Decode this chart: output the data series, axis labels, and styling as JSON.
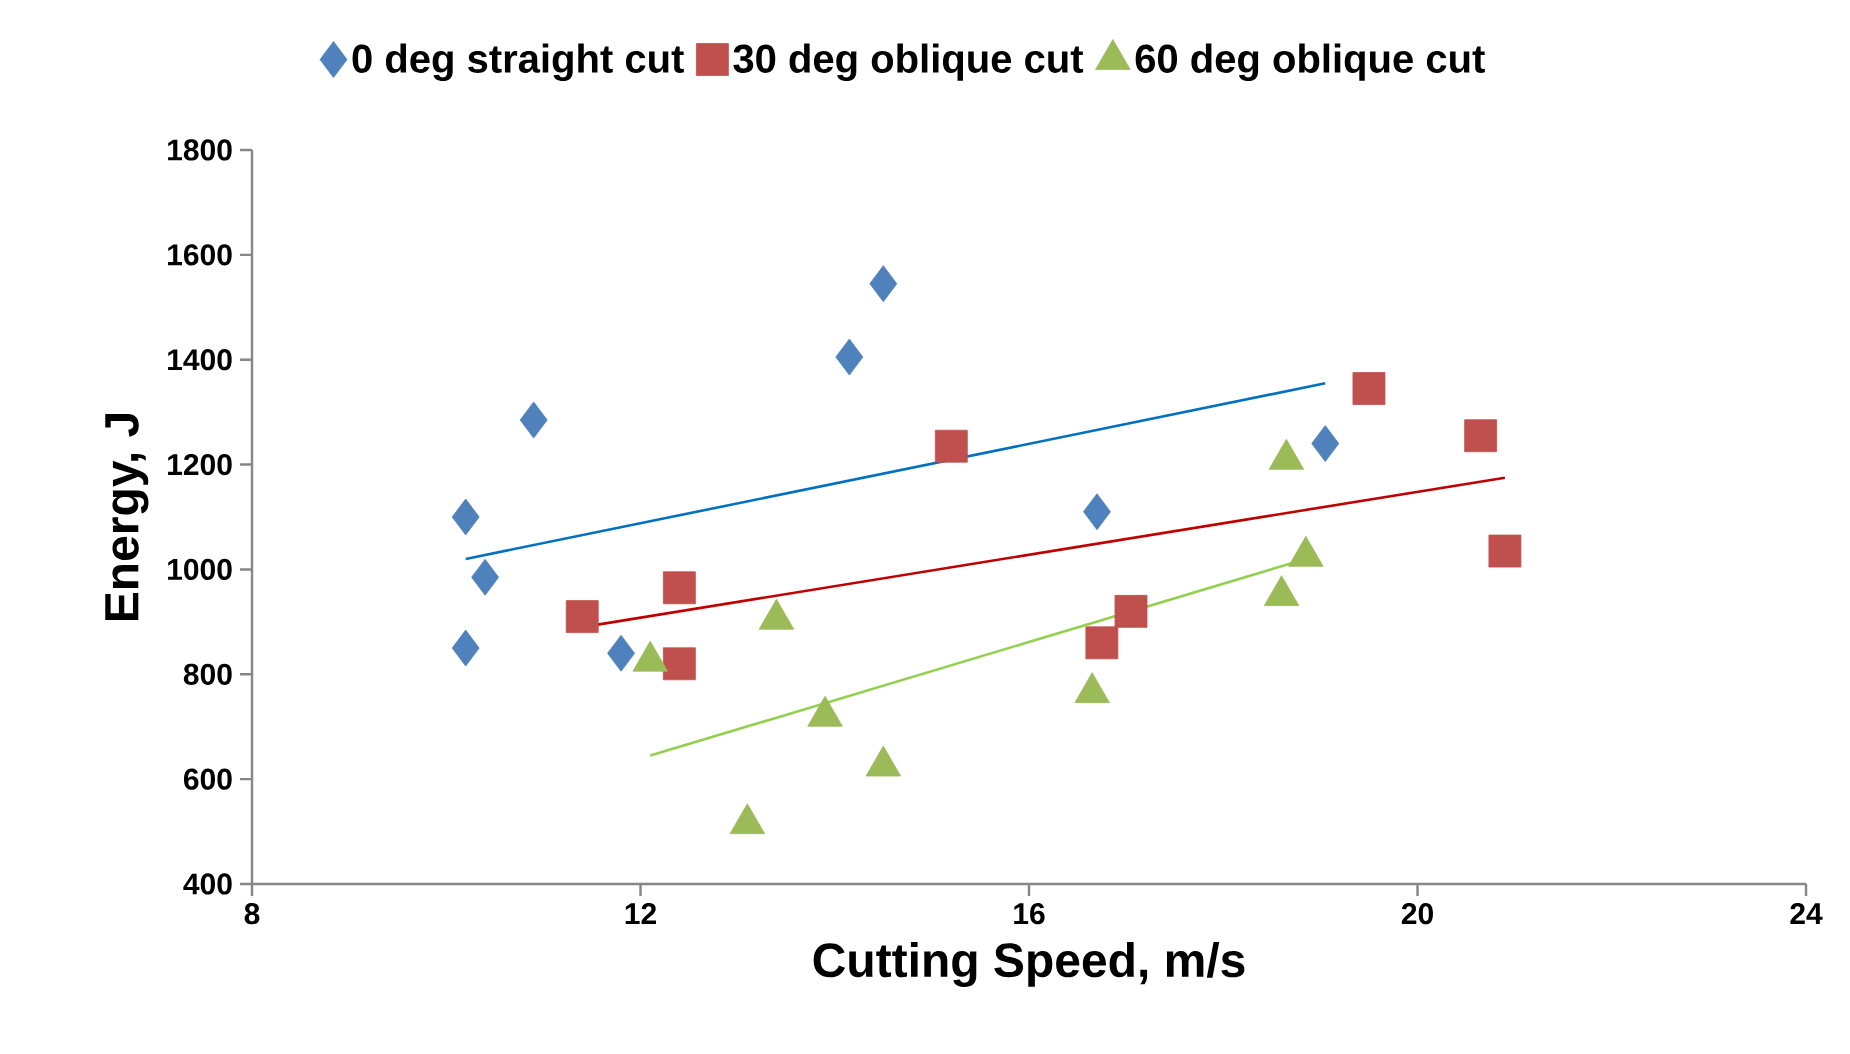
{
  "chart_data": {
    "type": "scatter",
    "xlabel": "Cutting Speed, m/s",
    "ylabel": "Energy, J",
    "xlim": [
      8,
      24
    ],
    "xticks": [
      8,
      12,
      16,
      20,
      24
    ],
    "ylim": [
      400,
      1800
    ],
    "yticks": [
      400,
      600,
      800,
      1000,
      1200,
      1400,
      1600,
      1800
    ],
    "grid": false,
    "legend": "top",
    "series": [
      {
        "name": "0 deg straight cut",
        "color": "#4f81bd",
        "marker": "diamond",
        "x": [
          10.2,
          10.4,
          10.2,
          10.9,
          11.8,
          14.15,
          14.5,
          16.7,
          19.05
        ],
        "values": [
          1100,
          985,
          850,
          1285,
          840,
          1405,
          1545,
          1110,
          1240
        ]
      },
      {
        "name": "30 deg oblique cut",
        "color": "#c0504d",
        "marker": "square",
        "x": [
          11.4,
          12.4,
          12.4,
          15.2,
          16.75,
          17.05,
          19.5,
          20.65,
          20.9
        ],
        "values": [
          910,
          965,
          820,
          1235,
          860,
          920,
          1345,
          1255,
          1035
        ]
      },
      {
        "name": "60 deg oblique cut",
        "color": "#9bbb59",
        "marker": "triangle",
        "x": [
          12.1,
          13.4,
          13.9,
          13.1,
          14.5,
          16.65,
          18.6,
          18.65,
          18.85
        ],
        "values": [
          825,
          905,
          720,
          515,
          625,
          765,
          950,
          1210,
          1025
        ]
      },
      {
        "type": "line",
        "color": "#0070c0",
        "marker": "none",
        "x": [
          10.2,
          19.05
        ],
        "values": [
          1020,
          1355
        ]
      },
      {
        "type": "line",
        "color": "#c00000",
        "marker": "none",
        "x": [
          11.4,
          20.9
        ],
        "values": [
          890,
          1175
        ]
      },
      {
        "type": "line",
        "color": "#92d050",
        "marker": "none",
        "x": [
          12.1,
          18.85
        ],
        "values": [
          645,
          1020
        ]
      }
    ]
  }
}
